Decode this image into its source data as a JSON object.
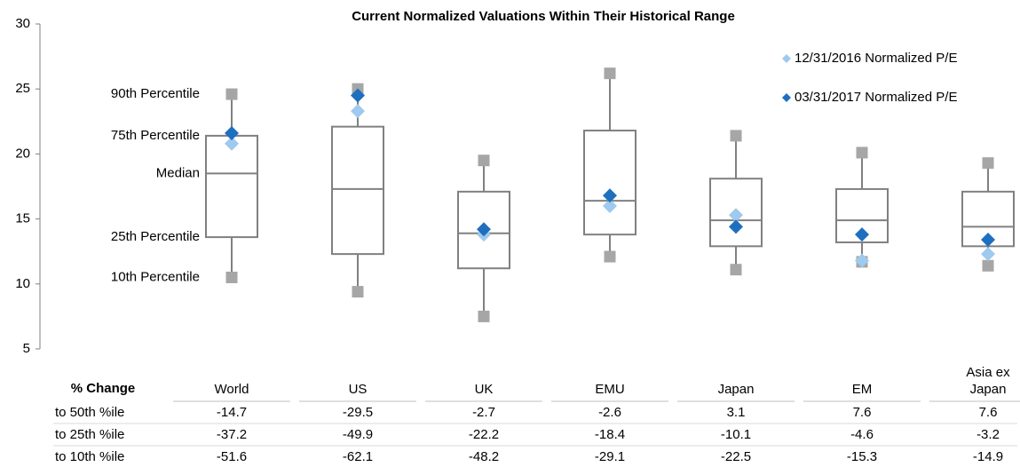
{
  "chart_data": {
    "type": "box",
    "title": "Current Normalized Valuations Within Their Historical Range",
    "categories": [
      "World",
      "US",
      "UK",
      "EMU",
      "Japan",
      "EM",
      "Asia ex Japan"
    ],
    "percentile_90": [
      24.6,
      25.0,
      19.5,
      26.2,
      21.4,
      20.1,
      19.3
    ],
    "percentile_75": [
      21.4,
      22.1,
      17.1,
      21.8,
      18.1,
      17.3,
      17.1
    ],
    "median": [
      18.5,
      17.3,
      13.9,
      16.4,
      14.9,
      14.9,
      14.4
    ],
    "percentile_25": [
      13.6,
      12.3,
      11.2,
      13.8,
      12.9,
      13.2,
      12.9
    ],
    "percentile_10": [
      10.5,
      9.4,
      7.5,
      12.1,
      11.1,
      11.7,
      11.4
    ],
    "box_color": "#808080",
    "whisker_end_color": "#a6a6a6",
    "series": [
      {
        "name": "12/31/2016 Normalized P/E",
        "color": "#9fc9ee",
        "values": [
          20.8,
          23.3,
          13.8,
          16.0,
          15.3,
          11.8,
          12.3
        ]
      },
      {
        "name": "03/31/2017 Normalized P/E",
        "color": "#1f6fbf",
        "values": [
          21.6,
          24.5,
          14.2,
          16.8,
          14.4,
          13.8,
          13.4
        ]
      }
    ],
    "annotations": [
      "90th Percentile",
      "75th Percentile",
      "Median",
      "25th Percentile",
      "10th Percentile"
    ],
    "ylim": [
      5,
      30
    ],
    "yticks": [
      5,
      10,
      15,
      20,
      25,
      30
    ],
    "legend": "upper right",
    "table": {
      "header": "% Change",
      "rows": [
        {
          "label": "to 50th %ile",
          "values": [
            -14.7,
            -29.5,
            -2.7,
            -2.6,
            3.1,
            7.6,
            7.6
          ]
        },
        {
          "label": "to 25th %ile",
          "values": [
            -37.2,
            -49.9,
            -22.2,
            -18.4,
            -10.1,
            -4.6,
            -3.2
          ]
        },
        {
          "label": "to 10th %ile",
          "values": [
            -51.6,
            -62.1,
            -48.2,
            -29.1,
            -22.5,
            -15.3,
            -14.9
          ]
        }
      ]
    }
  }
}
